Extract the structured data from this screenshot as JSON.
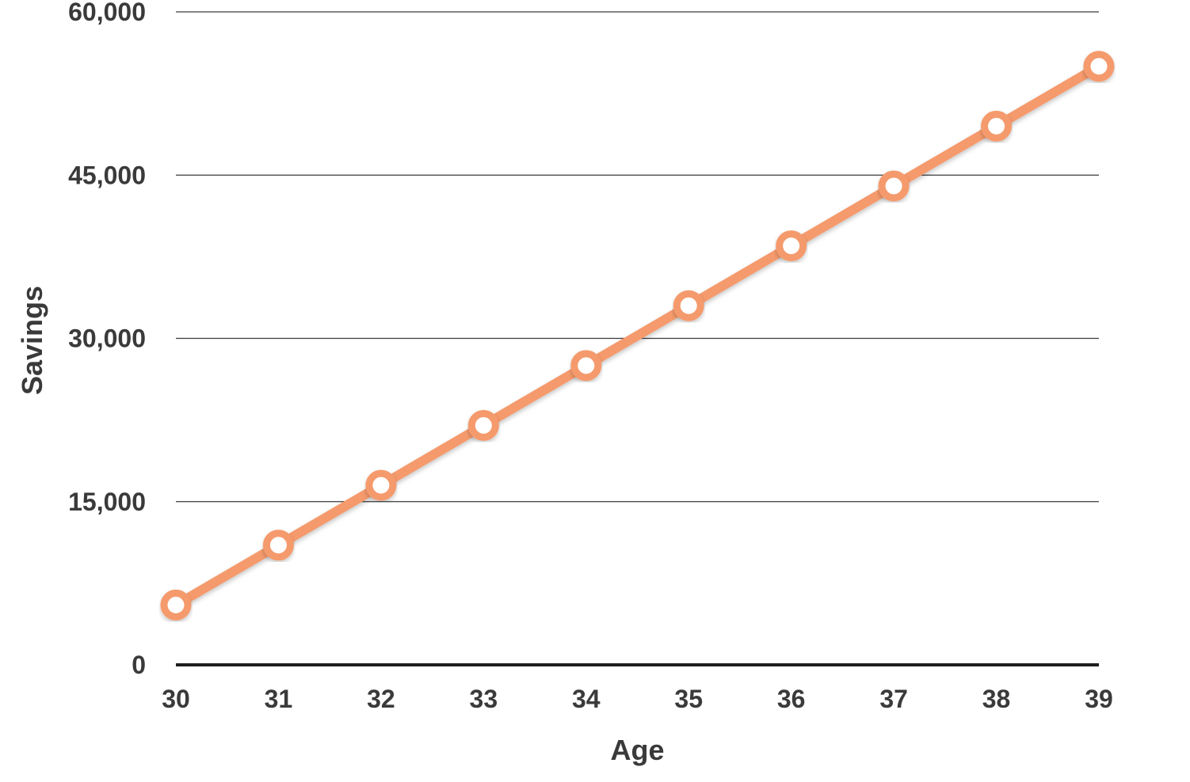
{
  "chart_data": {
    "type": "line",
    "title": "",
    "xlabel": "Age",
    "ylabel": "Savings",
    "x": [
      30,
      31,
      32,
      33,
      34,
      35,
      36,
      37,
      38,
      39
    ],
    "series": [
      {
        "values": [
          5500,
          11000,
          16500,
          22000,
          27500,
          33000,
          38500,
          44000,
          49500,
          55000
        ]
      }
    ],
    "ylim": [
      0,
      60000
    ],
    "yticks": [
      0,
      15000,
      30000,
      45000,
      60000
    ],
    "ytick_labels": [
      "0",
      "15,000",
      "30,000",
      "45,000",
      "60,000"
    ],
    "xtick_labels": [
      "30",
      "31",
      "32",
      "33",
      "34",
      "35",
      "36",
      "37",
      "38",
      "39"
    ],
    "grid": true,
    "legend": "none",
    "colors": {
      "line": "#f59a6c",
      "marker_fill": "#ffffff",
      "grid": "#3a3a3a",
      "axis": "#1e1e1e",
      "text": "#3a3a3a"
    }
  }
}
